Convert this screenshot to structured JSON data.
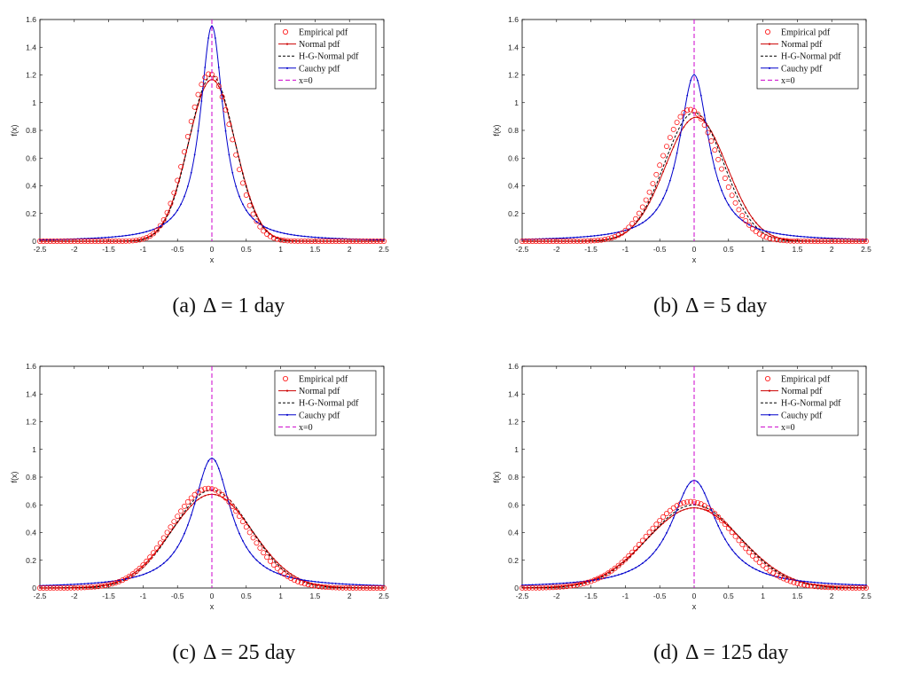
{
  "chart_data": [
    {
      "type": "line",
      "caption_label": "(a)",
      "caption_text": "Δ = 1 day",
      "xlabel": "x",
      "ylabel": "f(x)",
      "xlim": [
        -2.5,
        2.5
      ],
      "ylim": [
        0,
        1.6
      ],
      "xticks": [
        "-2.5",
        "-2",
        "-1.5",
        "-1",
        "-0.5",
        "0",
        "0.5",
        "1",
        "1.5",
        "2",
        "2.5"
      ],
      "yticks": [
        "0",
        "0.2",
        "0.4",
        "0.6",
        "0.8",
        "1",
        "1.2",
        "1.4",
        "1.6"
      ],
      "legend": [
        "Empirical pdf",
        "Normal pdf",
        "H-G-Normal pdf",
        "Cauchy pdf",
        "x=0"
      ],
      "series": [
        {
          "name": "Empirical pdf",
          "kind": "normal",
          "mu": -0.03,
          "sigma": 0.33,
          "color": "#ff0000"
        },
        {
          "name": "Normal pdf",
          "kind": "normal",
          "mu": 0.0,
          "sigma": 0.342,
          "color": "#cc0000"
        },
        {
          "name": "H-G-Normal pdf",
          "kind": "normal",
          "mu": 0.0,
          "sigma": 0.334,
          "color": "#000000"
        },
        {
          "name": "Cauchy pdf",
          "kind": "cauchy",
          "x0": 0.0,
          "gamma": 0.205,
          "color": "#0000cc"
        }
      ]
    },
    {
      "type": "line",
      "caption_label": "(b)",
      "caption_text": "Δ = 5 day",
      "xlabel": "x",
      "ylabel": "f(x)",
      "xlim": [
        -2.5,
        2.5
      ],
      "ylim": [
        0,
        1.6
      ],
      "xticks": [
        "-2.5",
        "-2",
        "-1.5",
        "-1",
        "-0.5",
        "0",
        "0.5",
        "1",
        "1.5",
        "2",
        "2.5"
      ],
      "yticks": [
        "0",
        "0.2",
        "0.4",
        "0.6",
        "0.8",
        "1",
        "1.2",
        "1.4",
        "1.6"
      ],
      "legend": [
        "Empirical pdf",
        "Normal pdf",
        "H-G-Normal pdf",
        "Cauchy pdf",
        "x=0"
      ],
      "series": [
        {
          "name": "Empirical pdf",
          "kind": "normal",
          "mu": -0.06,
          "sigma": 0.42,
          "color": "#ff0000"
        },
        {
          "name": "Normal pdf",
          "kind": "normal",
          "mu": 0.03,
          "sigma": 0.446,
          "color": "#cc0000"
        },
        {
          "name": "H-G-Normal pdf",
          "kind": "normal",
          "mu": 0.0,
          "sigma": 0.43,
          "color": "#000000"
        },
        {
          "name": "Cauchy pdf",
          "kind": "cauchy",
          "x0": 0.0,
          "gamma": 0.265,
          "color": "#0000cc"
        }
      ]
    },
    {
      "type": "line",
      "caption_label": "(c)",
      "caption_text": "Δ = 25 day",
      "xlabel": "x",
      "ylabel": "f(x)",
      "xlim": [
        -2.5,
        2.5
      ],
      "ylim": [
        0,
        1.6
      ],
      "xticks": [
        "-2.5",
        "-2",
        "-1.5",
        "-1",
        "-0.5",
        "0",
        "0.5",
        "1",
        "1.5",
        "2",
        "2.5"
      ],
      "yticks": [
        "0",
        "0.2",
        "0.4",
        "0.6",
        "0.8",
        "1",
        "1.2",
        "1.4",
        "1.6"
      ],
      "legend": [
        "Empirical pdf",
        "Normal pdf",
        "H-G-Normal pdf",
        "Cauchy pdf",
        "x=0"
      ],
      "series": [
        {
          "name": "Empirical pdf",
          "kind": "normal",
          "mu": -0.05,
          "sigma": 0.555,
          "color": "#ff0000"
        },
        {
          "name": "Normal pdf",
          "kind": "normal",
          "mu": 0.0,
          "sigma": 0.59,
          "color": "#cc0000"
        },
        {
          "name": "H-G-Normal pdf",
          "kind": "normal",
          "mu": 0.0,
          "sigma": 0.565,
          "color": "#000000"
        },
        {
          "name": "Cauchy pdf",
          "kind": "cauchy",
          "x0": 0.0,
          "gamma": 0.34,
          "color": "#0000cc"
        }
      ]
    },
    {
      "type": "line",
      "caption_label": "(d)",
      "caption_text": "Δ = 125 day",
      "xlabel": "x",
      "ylabel": "f(x)",
      "xlim": [
        -2.5,
        2.5
      ],
      "ylim": [
        0,
        1.6
      ],
      "xticks": [
        "-2.5",
        "-2",
        "-1.5",
        "-1",
        "-0.5",
        "0",
        "0.5",
        "1",
        "1.5",
        "2",
        "2.5"
      ],
      "yticks": [
        "0",
        "0.2",
        "0.4",
        "0.6",
        "0.8",
        "1",
        "1.2",
        "1.4",
        "1.6"
      ],
      "legend": [
        "Empirical pdf",
        "Normal pdf",
        "H-G-Normal pdf",
        "Cauchy pdf",
        "x=0"
      ],
      "series": [
        {
          "name": "Empirical pdf",
          "kind": "normal",
          "mu": -0.05,
          "sigma": 0.64,
          "color": "#ff0000"
        },
        {
          "name": "Normal pdf",
          "kind": "normal",
          "mu": 0.0,
          "sigma": 0.69,
          "color": "#cc0000"
        },
        {
          "name": "H-G-Normal pdf",
          "kind": "normal",
          "mu": 0.0,
          "sigma": 0.665,
          "color": "#000000"
        },
        {
          "name": "Cauchy pdf",
          "kind": "cauchy",
          "x0": 0.0,
          "gamma": 0.41,
          "color": "#0000cc"
        }
      ]
    }
  ],
  "colors": {
    "empirical": "#ff0000",
    "normal": "#cc0000",
    "hg": "#000000",
    "cauchy": "#0000cc",
    "zero": "#cc00cc"
  }
}
